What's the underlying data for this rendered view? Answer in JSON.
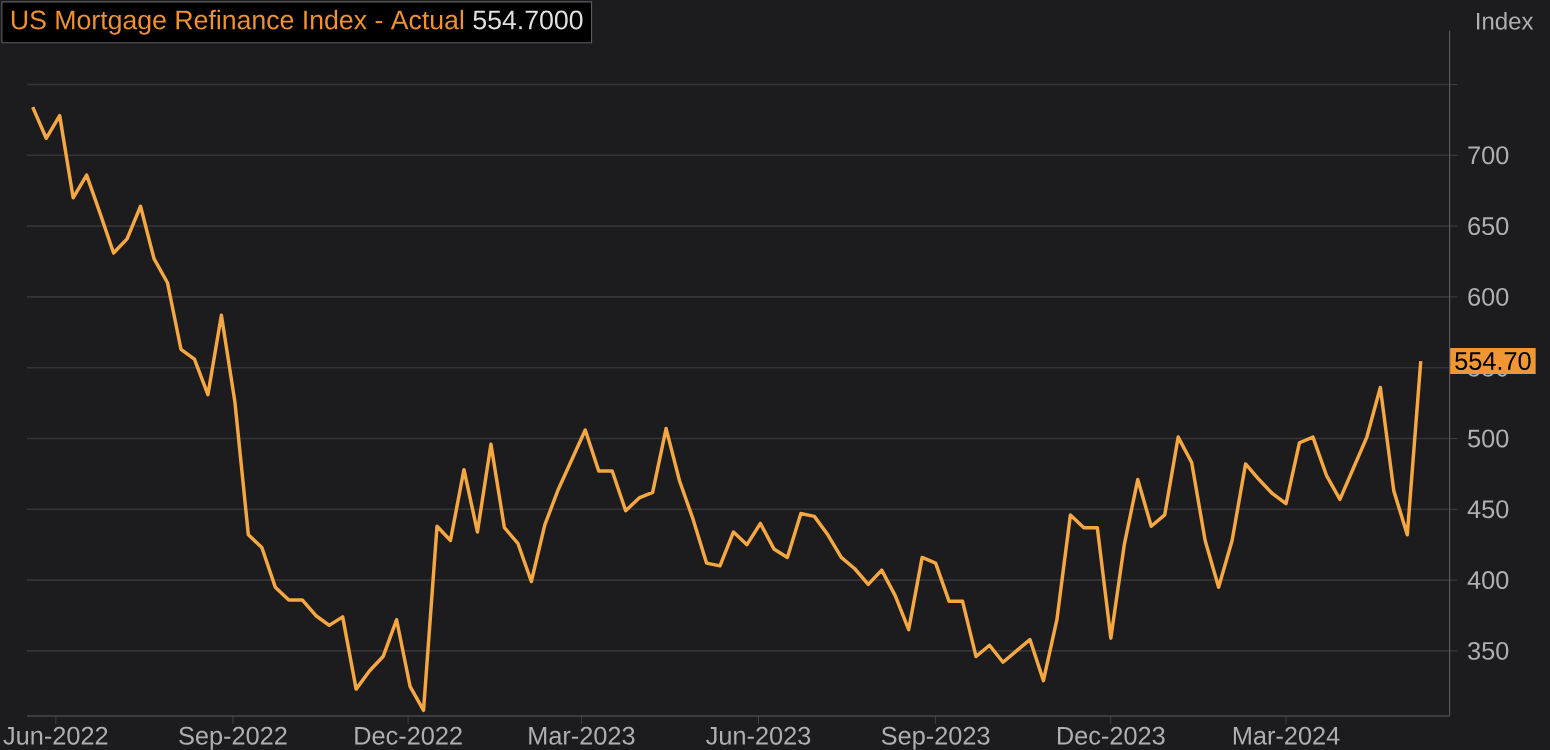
{
  "chart_data": {
    "type": "line",
    "title": "US Mortgage Refinance Index - Actual",
    "ylabel": "Index",
    "annotations": [
      "554.7000",
      "554.70"
    ],
    "xlim": [
      "2022-05-17",
      "2024-05-25"
    ],
    "xticks": [
      {
        "value": "2022-06-01",
        "label": "Jun-2022"
      },
      {
        "value": "2022-09-01",
        "label": "Sep-2022"
      },
      {
        "value": "2022-12-01",
        "label": "Dec-2022"
      },
      {
        "value": "2023-03-01",
        "label": "Mar-2023"
      },
      {
        "value": "2023-06-01",
        "label": "Jun-2023"
      },
      {
        "value": "2023-09-01",
        "label": "Sep-2023"
      },
      {
        "value": "2023-12-01",
        "label": "Dec-2023"
      },
      {
        "value": "2024-03-01",
        "label": "Mar-2024"
      }
    ],
    "ylim": [
      304,
      788
    ],
    "yticks": [
      350,
      400,
      450,
      500,
      550,
      600,
      650,
      700,
      {
        "value": 750,
        "label": null
      }
    ],
    "grid": "y",
    "x": [
      "2022-05-20",
      "2022-05-27",
      "2022-06-03",
      "2022-06-10",
      "2022-06-17",
      "2022-06-24",
      "2022-07-01",
      "2022-07-08",
      "2022-07-15",
      "2022-07-22",
      "2022-07-29",
      "2022-08-05",
      "2022-08-12",
      "2022-08-19",
      "2022-08-26",
      "2022-09-02",
      "2022-09-09",
      "2022-09-16",
      "2022-09-23",
      "2022-09-30",
      "2022-10-07",
      "2022-10-14",
      "2022-10-21",
      "2022-10-28",
      "2022-11-04",
      "2022-11-11",
      "2022-11-18",
      "2022-11-25",
      "2022-12-02",
      "2022-12-09",
      "2022-12-16",
      "2022-12-23",
      "2022-12-30",
      "2023-01-06",
      "2023-01-13",
      "2023-01-20",
      "2023-01-27",
      "2023-02-03",
      "2023-02-10",
      "2023-02-17",
      "2023-02-24",
      "2023-03-03",
      "2023-03-10",
      "2023-03-17",
      "2023-03-24",
      "2023-03-31",
      "2023-04-07",
      "2023-04-14",
      "2023-04-21",
      "2023-04-28",
      "2023-05-05",
      "2023-05-12",
      "2023-05-19",
      "2023-05-26",
      "2023-06-02",
      "2023-06-09",
      "2023-06-16",
      "2023-06-23",
      "2023-06-30",
      "2023-07-07",
      "2023-07-14",
      "2023-07-21",
      "2023-07-28",
      "2023-08-04",
      "2023-08-11",
      "2023-08-18",
      "2023-08-25",
      "2023-09-01",
      "2023-09-08",
      "2023-09-15",
      "2023-09-22",
      "2023-09-29",
      "2023-10-06",
      "2023-10-13",
      "2023-10-20",
      "2023-10-27",
      "2023-11-03",
      "2023-11-10",
      "2023-11-17",
      "2023-11-24",
      "2023-12-01",
      "2023-12-08",
      "2023-12-15",
      "2023-12-22",
      "2023-12-29",
      "2024-01-05",
      "2024-01-12",
      "2024-01-19",
      "2024-01-26",
      "2024-02-02",
      "2024-02-09",
      "2024-02-16",
      "2024-02-23",
      "2024-03-01",
      "2024-03-08",
      "2024-03-15",
      "2024-03-22",
      "2024-03-29",
      "2024-04-05",
      "2024-04-12",
      "2024-04-19",
      "2024-04-26",
      "2024-05-03",
      "2024-05-10"
    ],
    "series": [
      {
        "color": "#f5a742",
        "values": [
          734,
          712,
          728,
          670,
          686,
          659,
          631,
          641,
          664,
          627,
          610,
          563,
          556,
          531,
          587,
          526,
          432,
          423,
          395,
          386,
          386,
          375,
          368,
          374,
          323,
          336,
          346,
          372,
          325,
          308,
          438,
          428,
          478,
          434,
          496,
          437,
          426,
          399,
          439,
          464,
          485,
          506,
          477,
          477,
          449,
          458,
          462,
          507,
          470,
          443,
          412,
          410,
          434,
          425,
          440,
          422,
          416,
          447,
          445,
          432,
          416,
          408,
          397,
          407,
          389,
          365,
          416,
          412,
          385,
          385,
          346,
          354,
          342,
          350,
          358,
          329,
          372,
          446,
          437,
          437,
          359,
          425,
          471,
          438,
          446,
          501,
          483,
          428,
          395,
          428,
          482,
          471,
          461,
          454,
          497,
          501,
          474,
          457,
          479,
          501,
          536,
          463,
          432,
          554.7
        ]
      }
    ]
  }
}
